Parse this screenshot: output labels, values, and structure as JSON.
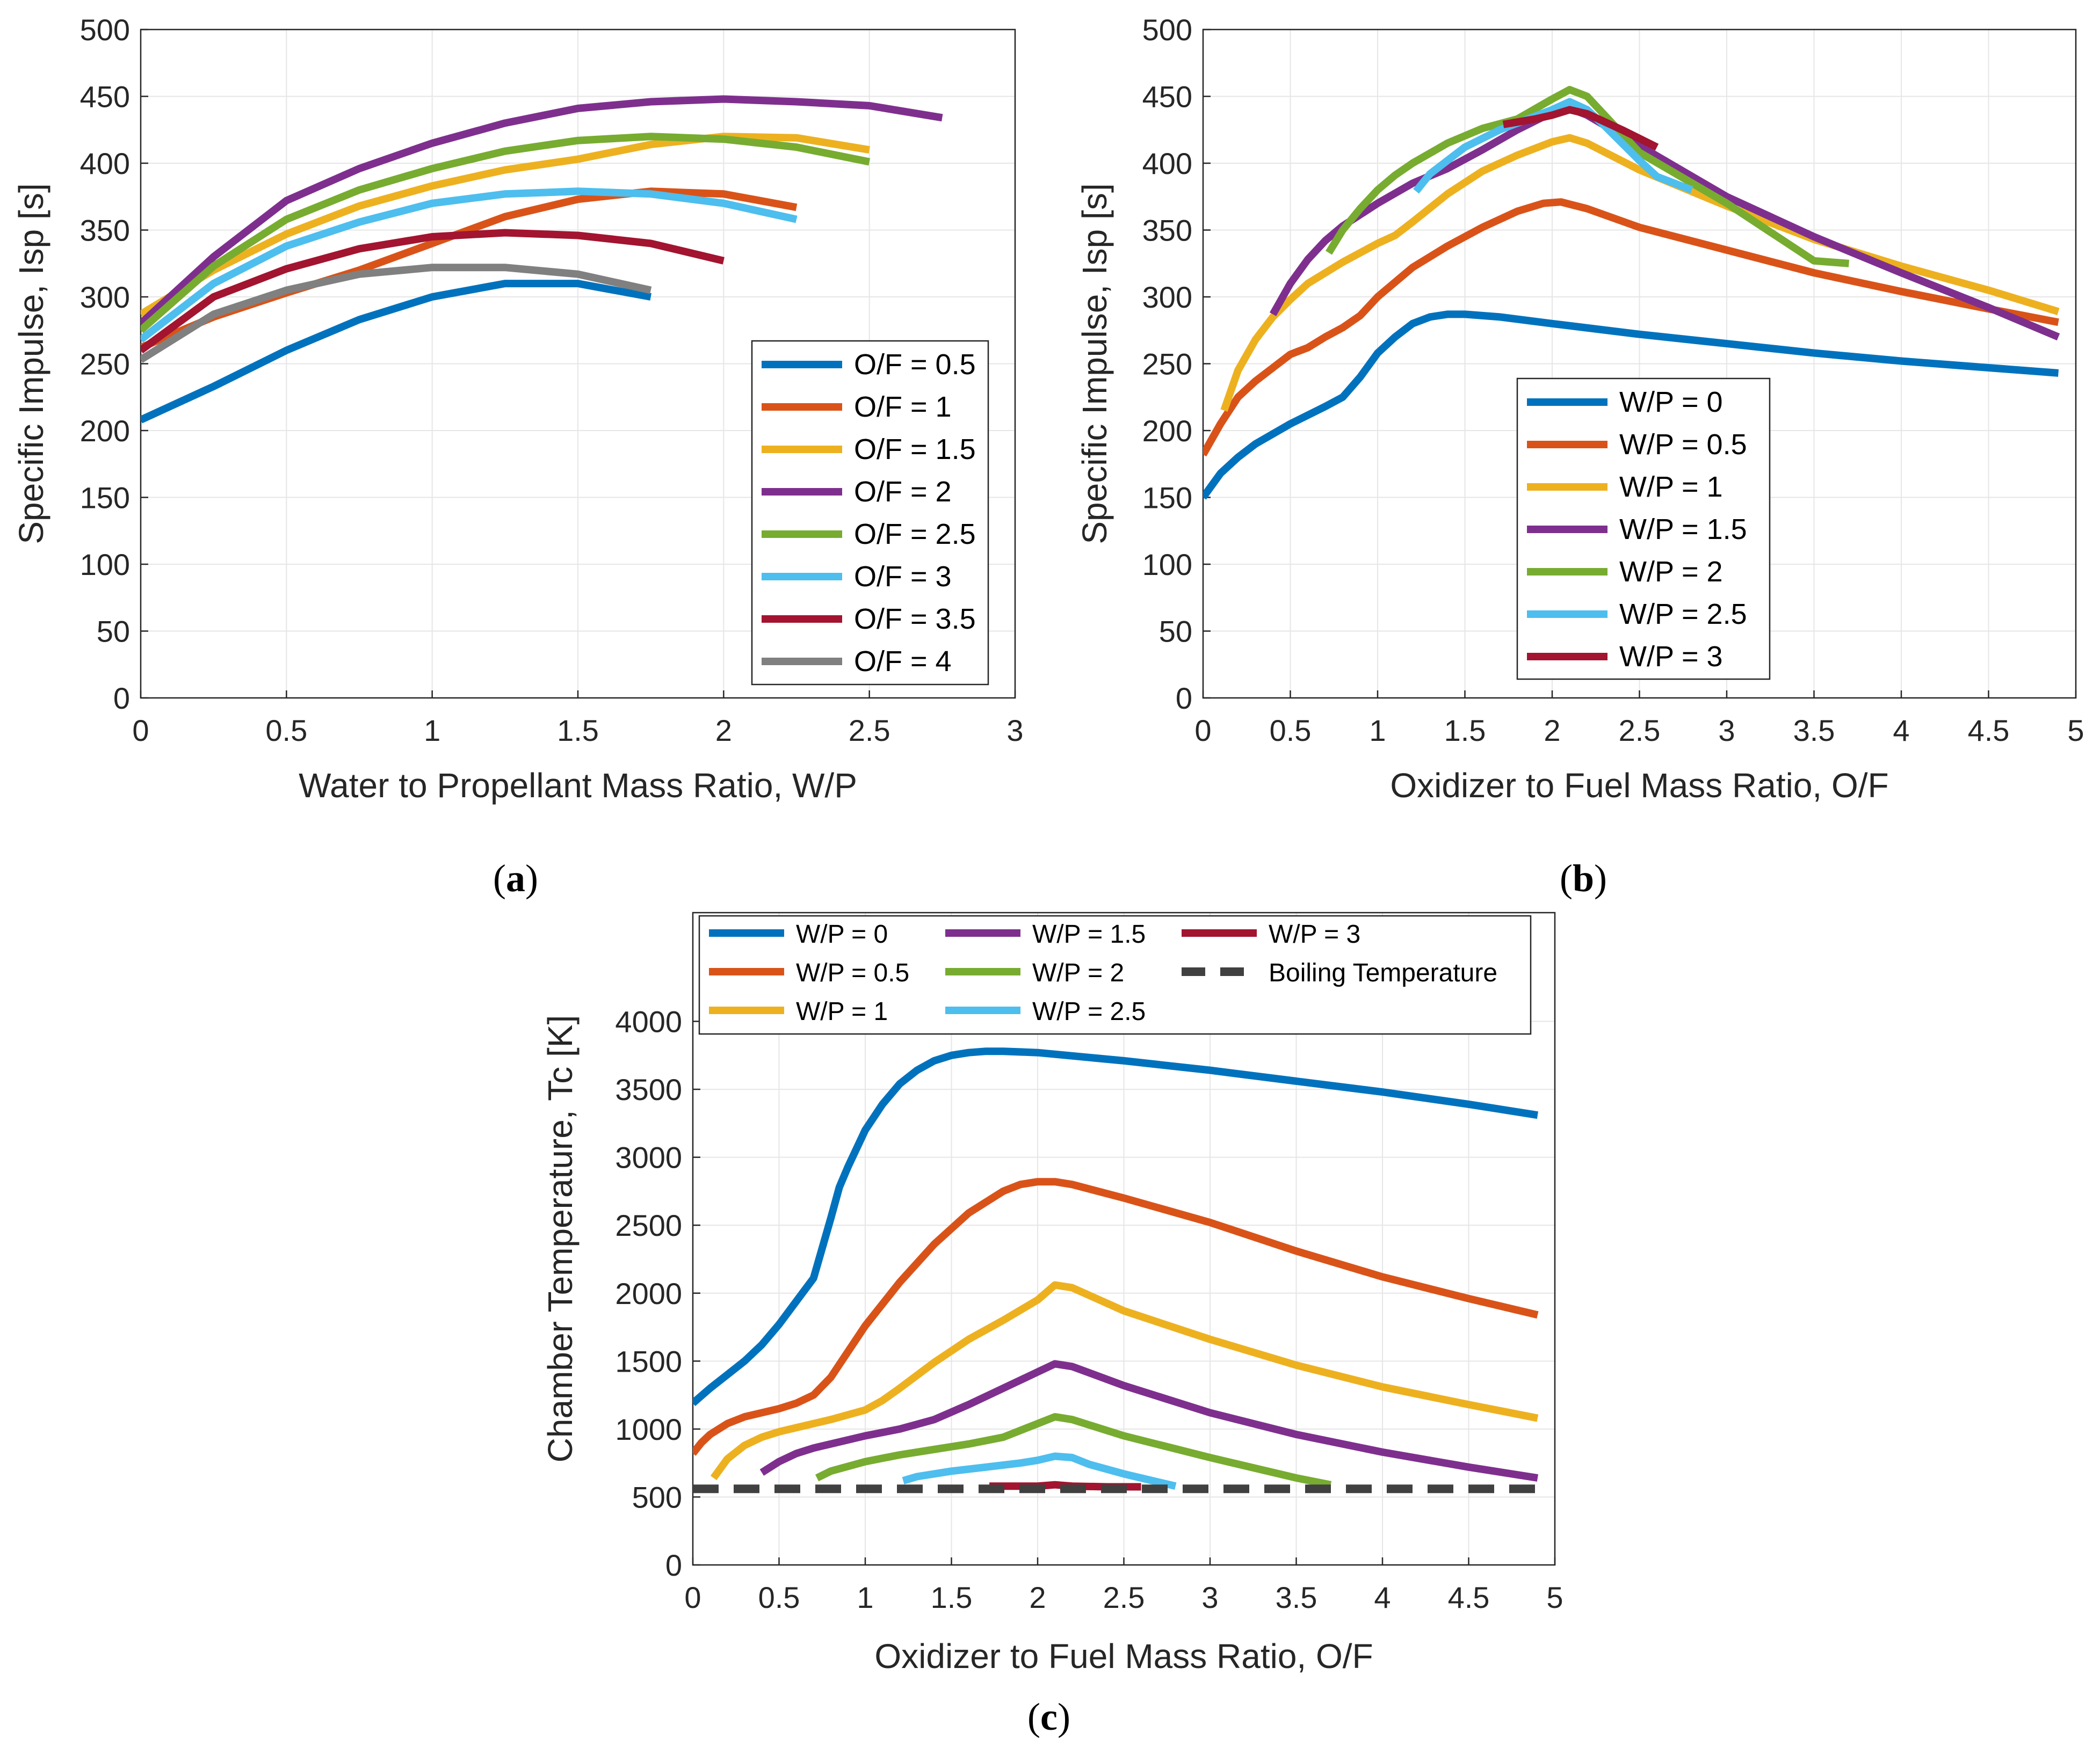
{
  "colors": {
    "c1": "#0072BD",
    "c2": "#D95319",
    "c3": "#EDB120",
    "c4": "#7E2F8E",
    "c5": "#77AC30",
    "c6": "#4DBEEE",
    "c7": "#A2142F",
    "c8": "#808080",
    "boil": "#404040"
  },
  "panel_labels": {
    "a": "a",
    "b": "b",
    "c": "c"
  },
  "chart_data": [
    {
      "id": "a",
      "type": "line",
      "xlabel": "Water to Propellant Mass Ratio, W/P",
      "ylabel": "Specific Impulse, Isp [s]",
      "xlim": [
        0,
        3
      ],
      "ylim": [
        0,
        500
      ],
      "xticks": [
        0,
        0.5,
        1,
        1.5,
        2,
        2.5,
        3
      ],
      "xtick_labels": [
        "0",
        "0.5",
        "1",
        "1.5",
        "2",
        "2.5",
        "3"
      ],
      "yticks": [
        0,
        50,
        100,
        150,
        200,
        250,
        300,
        350,
        400,
        450,
        500
      ],
      "ytick_labels": [
        "0",
        "50",
        "100",
        "150",
        "200",
        "250",
        "300",
        "350",
        "400",
        "450",
        "500"
      ],
      "legend_position": "bottom-right",
      "series": [
        {
          "name": "O/F = 0.5",
          "color": "c1",
          "x": [
            0,
            0.25,
            0.5,
            0.75,
            1,
            1.25,
            1.5,
            1.75
          ],
          "y": [
            208,
            233,
            260,
            283,
            300,
            310,
            310,
            300
          ]
        },
        {
          "name": "O/F = 1",
          "color": "c2",
          "x": [
            0,
            0.25,
            0.5,
            0.75,
            1,
            1.25,
            1.5,
            1.75,
            2,
            2.25
          ],
          "y": [
            262,
            285,
            303,
            320,
            340,
            360,
            373,
            379,
            377,
            367
          ]
        },
        {
          "name": "O/F = 1.5",
          "color": "c3",
          "x": [
            0,
            0.25,
            0.5,
            0.75,
            1,
            1.25,
            1.5,
            1.75,
            2,
            2.25,
            2.5
          ],
          "y": [
            287,
            320,
            347,
            368,
            383,
            395,
            403,
            414,
            420,
            419,
            410
          ]
        },
        {
          "name": "O/F = 2",
          "color": "c4",
          "x": [
            0,
            0.25,
            0.5,
            0.75,
            1,
            1.25,
            1.5,
            1.75,
            2,
            2.25,
            2.5,
            2.75
          ],
          "y": [
            280,
            330,
            372,
            396,
            415,
            430,
            441,
            446,
            448,
            446,
            443,
            434
          ]
        },
        {
          "name": "O/F = 2.5",
          "color": "c5",
          "x": [
            0,
            0.25,
            0.5,
            0.75,
            1,
            1.25,
            1.5,
            1.75,
            2,
            2.25,
            2.5
          ],
          "y": [
            275,
            323,
            358,
            380,
            396,
            409,
            417,
            420,
            418,
            412,
            401
          ]
        },
        {
          "name": "O/F = 3",
          "color": "c6",
          "x": [
            0,
            0.25,
            0.5,
            0.75,
            1,
            1.25,
            1.5,
            1.75,
            2,
            2.25
          ],
          "y": [
            268,
            310,
            338,
            356,
            370,
            377,
            379,
            377,
            370,
            358
          ]
        },
        {
          "name": "O/F = 3.5",
          "color": "c7",
          "x": [
            0,
            0.25,
            0.5,
            0.75,
            1,
            1.25,
            1.5,
            1.75,
            2
          ],
          "y": [
            260,
            300,
            321,
            336,
            345,
            348,
            346,
            340,
            327
          ]
        },
        {
          "name": "O/F = 4",
          "color": "c8",
          "x": [
            0,
            0.25,
            0.5,
            0.75,
            1,
            1.25,
            1.5,
            1.75
          ],
          "y": [
            253,
            287,
            305,
            317,
            322,
            322,
            317,
            305
          ]
        }
      ]
    },
    {
      "id": "b",
      "type": "line",
      "xlabel": "Oxidizer to Fuel Mass Ratio, O/F",
      "ylabel": "Specific Impulse, Isp [s]",
      "xlim": [
        0,
        5
      ],
      "ylim": [
        0,
        500
      ],
      "xticks": [
        0,
        0.5,
        1,
        1.5,
        2,
        2.5,
        3,
        3.5,
        4,
        4.5,
        5
      ],
      "xtick_labels": [
        "0",
        "0.5",
        "1",
        "1.5",
        "2",
        "2.5",
        "3",
        "3.5",
        "4",
        "4.5",
        "5"
      ],
      "yticks": [
        0,
        50,
        100,
        150,
        200,
        250,
        300,
        350,
        400,
        450,
        500
      ],
      "ytick_labels": [
        "0",
        "50",
        "100",
        "150",
        "200",
        "250",
        "300",
        "350",
        "400",
        "450",
        "500"
      ],
      "legend_position": "bottom-center",
      "series": [
        {
          "name": "W/P = 0",
          "color": "c1",
          "x": [
            0,
            0.1,
            0.2,
            0.3,
            0.5,
            0.7,
            0.8,
            0.9,
            1.0,
            1.1,
            1.2,
            1.3,
            1.4,
            1.5,
            1.7,
            2.0,
            2.5,
            3.0,
            3.5,
            4.0,
            4.5,
            4.9
          ],
          "y": [
            150,
            168,
            180,
            190,
            205,
            218,
            225,
            240,
            258,
            270,
            280,
            285,
            287,
            287,
            285,
            280,
            272,
            265,
            258,
            252,
            247,
            243
          ]
        },
        {
          "name": "W/P = 0.5",
          "color": "c2",
          "x": [
            0,
            0.1,
            0.2,
            0.3,
            0.4,
            0.5,
            0.6,
            0.7,
            0.8,
            0.9,
            1.0,
            1.2,
            1.4,
            1.6,
            1.8,
            1.95,
            2.05,
            2.2,
            2.5,
            3.0,
            3.5,
            4.0,
            4.5,
            4.9
          ],
          "y": [
            182,
            205,
            225,
            237,
            247,
            257,
            262,
            270,
            277,
            286,
            300,
            322,
            338,
            352,
            364,
            370,
            371,
            366,
            352,
            335,
            318,
            304,
            291,
            281
          ]
        },
        {
          "name": "W/P = 1",
          "color": "c3",
          "x": [
            0.12,
            0.2,
            0.3,
            0.4,
            0.5,
            0.6,
            0.8,
            1.0,
            1.1,
            1.2,
            1.4,
            1.6,
            1.8,
            2.0,
            2.1,
            2.2,
            2.5,
            3.0,
            3.5,
            4.0,
            4.5,
            4.9
          ],
          "y": [
            215,
            245,
            268,
            285,
            298,
            310,
            326,
            340,
            346,
            356,
            377,
            394,
            406,
            416,
            419,
            415,
            395,
            368,
            343,
            323,
            305,
            289
          ]
        },
        {
          "name": "W/P = 1.5",
          "color": "c4",
          "x": [
            0.4,
            0.5,
            0.6,
            0.7,
            0.8,
            1.0,
            1.2,
            1.4,
            1.6,
            1.8,
            2.0,
            2.1,
            2.2,
            2.5,
            3.0,
            3.5,
            4.0,
            4.5,
            4.9
          ],
          "y": [
            287,
            310,
            328,
            342,
            353,
            370,
            385,
            396,
            410,
            425,
            438,
            441,
            436,
            413,
            375,
            345,
            318,
            292,
            270
          ]
        },
        {
          "name": "W/P = 2",
          "color": "c5",
          "x": [
            0.72,
            0.8,
            0.9,
            1.0,
            1.1,
            1.2,
            1.4,
            1.6,
            1.8,
            2.0,
            2.1,
            2.2,
            2.5,
            3.0,
            3.5,
            3.7
          ],
          "y": [
            333,
            350,
            366,
            380,
            391,
            400,
            415,
            426,
            433,
            448,
            455,
            450,
            408,
            370,
            327,
            325
          ]
        },
        {
          "name": "W/P = 2.5",
          "color": "c6",
          "x": [
            1.22,
            1.3,
            1.5,
            1.7,
            1.9,
            2.0,
            2.1,
            2.2,
            2.3,
            2.5,
            2.6,
            2.8
          ],
          "y": [
            379,
            392,
            412,
            425,
            435,
            440,
            446,
            440,
            428,
            402,
            390,
            380
          ]
        },
        {
          "name": "W/P = 3",
          "color": "c7",
          "x": [
            1.72,
            1.9,
            2.0,
            2.1,
            2.2,
            2.4,
            2.6
          ],
          "y": [
            429,
            433,
            436,
            440,
            437,
            425,
            412
          ]
        }
      ]
    },
    {
      "id": "c",
      "type": "line",
      "xlabel": "Oxidizer to Fuel Mass Ratio, O/F",
      "ylabel": "Chamber Temperature, Tc [K]",
      "xlim": [
        0,
        5
      ],
      "ylim": [
        0,
        4800
      ],
      "xticks": [
        0,
        0.5,
        1,
        1.5,
        2,
        2.5,
        3,
        3.5,
        4,
        4.5,
        5
      ],
      "xtick_labels": [
        "0",
        "0.5",
        "1",
        "1.5",
        "2",
        "2.5",
        "3",
        "3.5",
        "4",
        "4.5",
        "5"
      ],
      "yticks": [
        0,
        500,
        1000,
        1500,
        2000,
        2500,
        3000,
        3500,
        4000
      ],
      "ytick_labels": [
        "0",
        "500",
        "1000",
        "1500",
        "2000",
        "2500",
        "3000",
        "3500",
        "4000"
      ],
      "legend_position": "top",
      "series": [
        {
          "name": "W/P = 0",
          "color": "c1",
          "x": [
            0,
            0.1,
            0.2,
            0.3,
            0.4,
            0.5,
            0.6,
            0.7,
            0.8,
            0.85,
            0.9,
            1.0,
            1.1,
            1.2,
            1.3,
            1.4,
            1.5,
            1.6,
            1.7,
            1.8,
            2.0,
            2.5,
            3.0,
            3.5,
            4.0,
            4.5,
            4.9
          ],
          "y": [
            1190,
            1300,
            1400,
            1500,
            1620,
            1770,
            1940,
            2110,
            2550,
            2780,
            2930,
            3200,
            3390,
            3540,
            3640,
            3710,
            3750,
            3770,
            3780,
            3780,
            3770,
            3710,
            3640,
            3560,
            3480,
            3390,
            3310
          ]
        },
        {
          "name": "W/P = 0.5",
          "color": "c2",
          "x": [
            0,
            0.05,
            0.1,
            0.2,
            0.3,
            0.4,
            0.5,
            0.6,
            0.7,
            0.8,
            0.9,
            1.0,
            1.2,
            1.4,
            1.6,
            1.8,
            1.9,
            2.0,
            2.1,
            2.2,
            2.5,
            3.0,
            3.5,
            4.0,
            4.5,
            4.9
          ],
          "y": [
            820,
            900,
            960,
            1040,
            1090,
            1120,
            1150,
            1190,
            1250,
            1380,
            1570,
            1760,
            2080,
            2360,
            2590,
            2750,
            2800,
            2820,
            2820,
            2800,
            2700,
            2520,
            2310,
            2120,
            1960,
            1840
          ]
        },
        {
          "name": "W/P = 1",
          "color": "c3",
          "x": [
            0.12,
            0.2,
            0.3,
            0.4,
            0.5,
            0.6,
            0.8,
            1.0,
            1.1,
            1.2,
            1.4,
            1.6,
            1.8,
            2.0,
            2.1,
            2.2,
            2.5,
            3.0,
            3.5,
            4.0,
            4.5,
            4.9
          ],
          "y": [
            640,
            780,
            880,
            940,
            980,
            1010,
            1070,
            1140,
            1210,
            1300,
            1490,
            1660,
            1800,
            1950,
            2060,
            2040,
            1870,
            1660,
            1470,
            1310,
            1180,
            1080
          ]
        },
        {
          "name": "W/P = 1.5",
          "color": "c4",
          "x": [
            0.4,
            0.5,
            0.6,
            0.7,
            0.8,
            1.0,
            1.2,
            1.4,
            1.6,
            1.8,
            2.0,
            2.1,
            2.2,
            2.5,
            3.0,
            3.5,
            4.0,
            4.5,
            4.9
          ],
          "y": [
            680,
            760,
            820,
            860,
            890,
            950,
            1000,
            1070,
            1180,
            1300,
            1420,
            1480,
            1460,
            1320,
            1120,
            960,
            830,
            720,
            640
          ]
        },
        {
          "name": "W/P = 2",
          "color": "c5",
          "x": [
            0.72,
            0.8,
            1.0,
            1.2,
            1.4,
            1.6,
            1.8,
            2.0,
            2.1,
            2.2,
            2.5,
            3.0,
            3.5,
            3.7
          ],
          "y": [
            640,
            690,
            760,
            810,
            850,
            890,
            940,
            1040,
            1090,
            1070,
            950,
            790,
            640,
            590
          ]
        },
        {
          "name": "W/P = 2.5",
          "color": "c6",
          "x": [
            1.22,
            1.3,
            1.5,
            1.7,
            1.9,
            2.0,
            2.1,
            2.2,
            2.3,
            2.5,
            2.8
          ],
          "y": [
            620,
            650,
            690,
            720,
            750,
            770,
            800,
            790,
            740,
            670,
            580
          ]
        },
        {
          "name": "W/P = 3",
          "color": "c7",
          "x": [
            1.72,
            1.9,
            2.0,
            2.1,
            2.2,
            2.4,
            2.6
          ],
          "y": [
            580,
            580,
            580,
            590,
            580,
            575,
            575
          ]
        },
        {
          "name": "Boiling Temperature",
          "color": "boil",
          "dashed": true,
          "x": [
            0,
            4.9
          ],
          "y": [
            560,
            560
          ]
        }
      ]
    }
  ]
}
